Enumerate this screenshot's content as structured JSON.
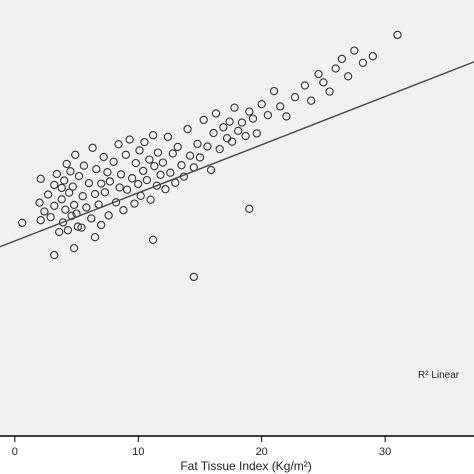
{
  "chart_data": {
    "type": "scatter",
    "title": "",
    "xlabel": "Fat Tissue Index (Kg/m²)",
    "ylabel": "",
    "xlim": [
      -1.2,
      37.2
    ],
    "ylim": [
      0,
      100
    ],
    "x_ticks": [
      0,
      10,
      20,
      30
    ],
    "grid": false,
    "legend_label": "R² Linear",
    "colors": {
      "background": "#f1f1f1",
      "frame": "#000000",
      "points": "#333333",
      "fit_line": "#444444"
    },
    "fit_line": {
      "x": [
        -1.2,
        37.2
      ],
      "y": [
        43.4,
        85.8
      ]
    },
    "series": [
      {
        "x": [
          0.6,
          2.0,
          2.1,
          2.1,
          2.4,
          2.7,
          2.9,
          3.2,
          3.2,
          3.4,
          3.6,
          3.8,
          3.8,
          3.9,
          4.0,
          4.1,
          4.2,
          4.3,
          4.4,
          4.5,
          4.6,
          4.7,
          4.8,
          4.9,
          5.0,
          5.2,
          5.4,
          5.5,
          5.6,
          5.8,
          6.0,
          6.2,
          6.3,
          6.5,
          6.6,
          6.8,
          7.0,
          7.0,
          7.2,
          7.3,
          7.5,
          7.6,
          7.7,
          8.0,
          8.2,
          8.4,
          8.5,
          8.6,
          8.8,
          9.0,
          9.1,
          9.3,
          9.5,
          9.7,
          9.8,
          10.0,
          10.1,
          10.2,
          10.4,
          10.5,
          10.7,
          10.9,
          11.0,
          11.2,
          11.3,
          11.5,
          11.6,
          11.8,
          12.0,
          12.2,
          12.4,
          12.6,
          12.8,
          13.0,
          13.2,
          13.5,
          13.7,
          14.0,
          14.2,
          14.5,
          14.8,
          15.0,
          15.3,
          15.6,
          15.9,
          16.1,
          16.3,
          16.6,
          16.9,
          17.2,
          17.4,
          17.6,
          17.8,
          18.1,
          18.4,
          18.7,
          19.0,
          19.3,
          19.6,
          20.0,
          20.5,
          21.0,
          21.5,
          22.0,
          22.7,
          23.5,
          24.0,
          24.6,
          25.0,
          25.5,
          26.0,
          26.5,
          27.0,
          27.5,
          28.2,
          29.0,
          31.0,
          4.8,
          6.5,
          11.2,
          19.0,
          3.2,
          5.1,
          14.5
        ],
        "y": [
          48.9,
          53.5,
          49.5,
          59.0,
          51.5,
          55.4,
          50.2,
          52.8,
          57.6,
          60.1,
          46.8,
          54.3,
          56.9,
          49.0,
          58.6,
          51.9,
          62.4,
          47.2,
          55.8,
          60.7,
          50.5,
          57.2,
          53.0,
          64.5,
          51.0,
          59.6,
          47.8,
          55.0,
          62.0,
          52.4,
          58.0,
          49.9,
          66.1,
          55.5,
          61.2,
          53.1,
          57.9,
          48.4,
          64.0,
          55.9,
          60.5,
          50.6,
          58.4,
          62.9,
          53.6,
          66.9,
          57.0,
          60.0,
          51.8,
          64.5,
          56.5,
          68.0,
          59.1,
          53.3,
          62.6,
          57.8,
          65.5,
          55.1,
          60.8,
          67.4,
          58.7,
          63.4,
          54.2,
          69.0,
          61.9,
          57.4,
          65.0,
          59.9,
          62.7,
          56.6,
          68.6,
          60.4,
          64.8,
          58.1,
          66.3,
          62.1,
          59.5,
          70.4,
          64.3,
          61.6,
          67.0,
          63.9,
          72.5,
          66.4,
          61.0,
          69.5,
          74.0,
          65.8,
          70.8,
          68.3,
          72.1,
          67.5,
          75.3,
          70.0,
          71.9,
          68.8,
          74.4,
          72.8,
          69.4,
          76.1,
          73.6,
          79.1,
          75.6,
          73.3,
          77.7,
          80.4,
          76.9,
          83.0,
          81.1,
          79.0,
          84.3,
          86.5,
          82.5,
          88.4,
          85.6,
          87.1,
          92.0,
          43.1,
          45.6,
          45.0,
          52.1,
          41.5,
          48.0,
          36.5
        ]
      }
    ]
  }
}
